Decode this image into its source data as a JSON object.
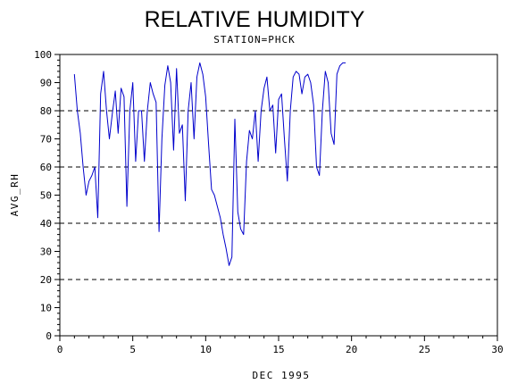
{
  "chart_data": {
    "type": "line",
    "title": "RELATIVE HUMIDITY",
    "subtitle": "STATION=PHCK",
    "xlabel": "DEC 1995",
    "ylabel": "AVG_RH",
    "xlim": [
      0,
      30
    ],
    "ylim": [
      0,
      100
    ],
    "x_ticks": [
      "0",
      "5",
      "10",
      "15",
      "20",
      "25",
      "30"
    ],
    "y_ticks": [
      "0",
      "10",
      "20",
      "30",
      "40",
      "50",
      "60",
      "70",
      "80",
      "90",
      "100"
    ],
    "reference_lines": [
      20,
      40,
      60,
      80,
      100
    ],
    "line_color": "#0000cc",
    "series": [
      {
        "points": [
          [
            1.0,
            93
          ],
          [
            1.2,
            80
          ],
          [
            1.4,
            72
          ],
          [
            1.6,
            60
          ],
          [
            1.8,
            50
          ],
          [
            2.0,
            55
          ],
          [
            2.2,
            57
          ],
          [
            2.4,
            60
          ],
          [
            2.6,
            42
          ],
          [
            2.8,
            86
          ],
          [
            3.0,
            94
          ],
          [
            3.2,
            80
          ],
          [
            3.4,
            70
          ],
          [
            3.6,
            79
          ],
          [
            3.8,
            87
          ],
          [
            4.0,
            72
          ],
          [
            4.2,
            88
          ],
          [
            4.4,
            85
          ],
          [
            4.6,
            46
          ],
          [
            4.8,
            80
          ],
          [
            5.0,
            90
          ],
          [
            5.2,
            62
          ],
          [
            5.4,
            80
          ],
          [
            5.6,
            80
          ],
          [
            5.8,
            62
          ],
          [
            6.0,
            80
          ],
          [
            6.2,
            90
          ],
          [
            6.4,
            86
          ],
          [
            6.6,
            83
          ],
          [
            6.8,
            37
          ],
          [
            7.0,
            70
          ],
          [
            7.2,
            89
          ],
          [
            7.4,
            96
          ],
          [
            7.6,
            90
          ],
          [
            7.8,
            66
          ],
          [
            8.0,
            95
          ],
          [
            8.2,
            72
          ],
          [
            8.4,
            75
          ],
          [
            8.6,
            48
          ],
          [
            8.8,
            80
          ],
          [
            9.0,
            90
          ],
          [
            9.2,
            70
          ],
          [
            9.4,
            92
          ],
          [
            9.6,
            97
          ],
          [
            9.8,
            93
          ],
          [
            10.0,
            85
          ],
          [
            10.2,
            68
          ],
          [
            10.4,
            52
          ],
          [
            10.6,
            50
          ],
          [
            10.8,
            46
          ],
          [
            11.0,
            42
          ],
          [
            11.2,
            36
          ],
          [
            11.4,
            31
          ],
          [
            11.6,
            25
          ],
          [
            11.8,
            28
          ],
          [
            12.0,
            77
          ],
          [
            12.2,
            44
          ],
          [
            12.4,
            38
          ],
          [
            12.6,
            36
          ],
          [
            12.8,
            62
          ],
          [
            13.0,
            73
          ],
          [
            13.2,
            70
          ],
          [
            13.4,
            80
          ],
          [
            13.6,
            62
          ],
          [
            13.8,
            80
          ],
          [
            14.0,
            88
          ],
          [
            14.2,
            92
          ],
          [
            14.4,
            80
          ],
          [
            14.6,
            82
          ],
          [
            14.8,
            65
          ],
          [
            15.0,
            84
          ],
          [
            15.2,
            86
          ],
          [
            15.4,
            70
          ],
          [
            15.6,
            55
          ],
          [
            15.8,
            80
          ],
          [
            16.0,
            92
          ],
          [
            16.2,
            94
          ],
          [
            16.4,
            93
          ],
          [
            16.6,
            86
          ],
          [
            16.8,
            92
          ],
          [
            17.0,
            93
          ],
          [
            17.2,
            90
          ],
          [
            17.4,
            82
          ],
          [
            17.6,
            60
          ],
          [
            17.8,
            57
          ],
          [
            18.0,
            80
          ],
          [
            18.2,
            94
          ],
          [
            18.4,
            90
          ],
          [
            18.6,
            72
          ],
          [
            18.8,
            68
          ],
          [
            19.0,
            93
          ],
          [
            19.2,
            96
          ],
          [
            19.4,
            97
          ],
          [
            19.6,
            97
          ]
        ]
      }
    ]
  }
}
